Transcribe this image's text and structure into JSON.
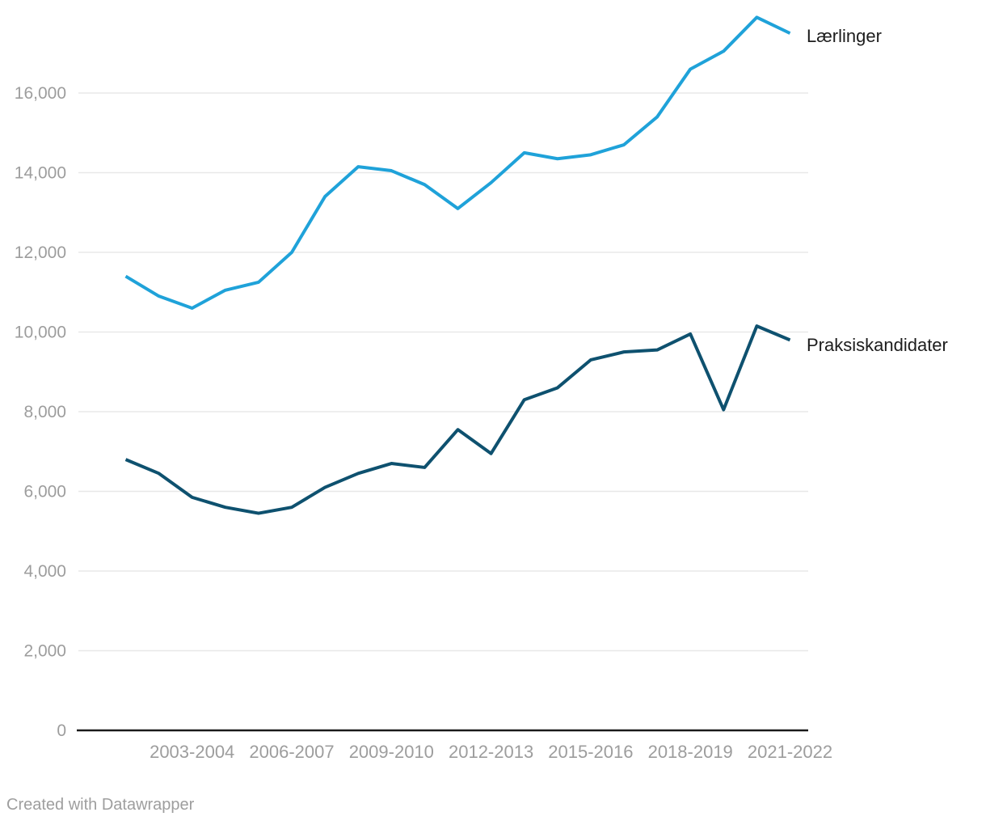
{
  "chart_data": {
    "type": "line",
    "x": [
      "2001-2002",
      "2002-2003",
      "2003-2004",
      "2004-2005",
      "2005-2006",
      "2006-2007",
      "2007-2008",
      "2008-2009",
      "2009-2010",
      "2010-2011",
      "2011-2012",
      "2012-2013",
      "2013-2014",
      "2014-2015",
      "2015-2016",
      "2016-2017",
      "2017-2018",
      "2018-2019",
      "2019-2020",
      "2020-2021",
      "2021-2022"
    ],
    "series": [
      {
        "name": "Lærlinger",
        "color": "#1fa2d9",
        "values": [
          11400,
          10900,
          10600,
          11050,
          11250,
          12000,
          13400,
          14150,
          14050,
          13700,
          13100,
          13750,
          14500,
          14350,
          14450,
          14700,
          15400,
          16600,
          17050,
          17900,
          17500
        ]
      },
      {
        "name": "Praksiskandidater",
        "color": "#0e516f",
        "values": [
          6800,
          6450,
          5850,
          5600,
          5450,
          5600,
          6100,
          6450,
          6700,
          6600,
          7550,
          6950,
          8300,
          8600,
          9300,
          9500,
          9550,
          9950,
          8050,
          10150,
          9800
        ]
      }
    ],
    "x_tick_labels": [
      "2003-2004",
      "2006-2007",
      "2009-2010",
      "2012-2013",
      "2015-2016",
      "2018-2019",
      "2021-2022"
    ],
    "y_ticks": [
      0,
      2000,
      4000,
      6000,
      8000,
      10000,
      12000,
      14000,
      16000
    ],
    "y_tick_labels": [
      "0",
      "2,000",
      "4,000",
      "6,000",
      "8,000",
      "10,000",
      "12,000",
      "14,000",
      "16,000"
    ],
    "ylim": [
      0,
      18350
    ],
    "grid": "horizontal-only",
    "legend_position": "direct-labels-at-line-end",
    "colors": {
      "gridline": "#e8e8e8",
      "baseline": "#1a1a1a",
      "tick_label": "#9d9d9d",
      "series_label_text": "#1d1d1d"
    }
  },
  "footer": {
    "credit": "Created with Datawrapper"
  }
}
